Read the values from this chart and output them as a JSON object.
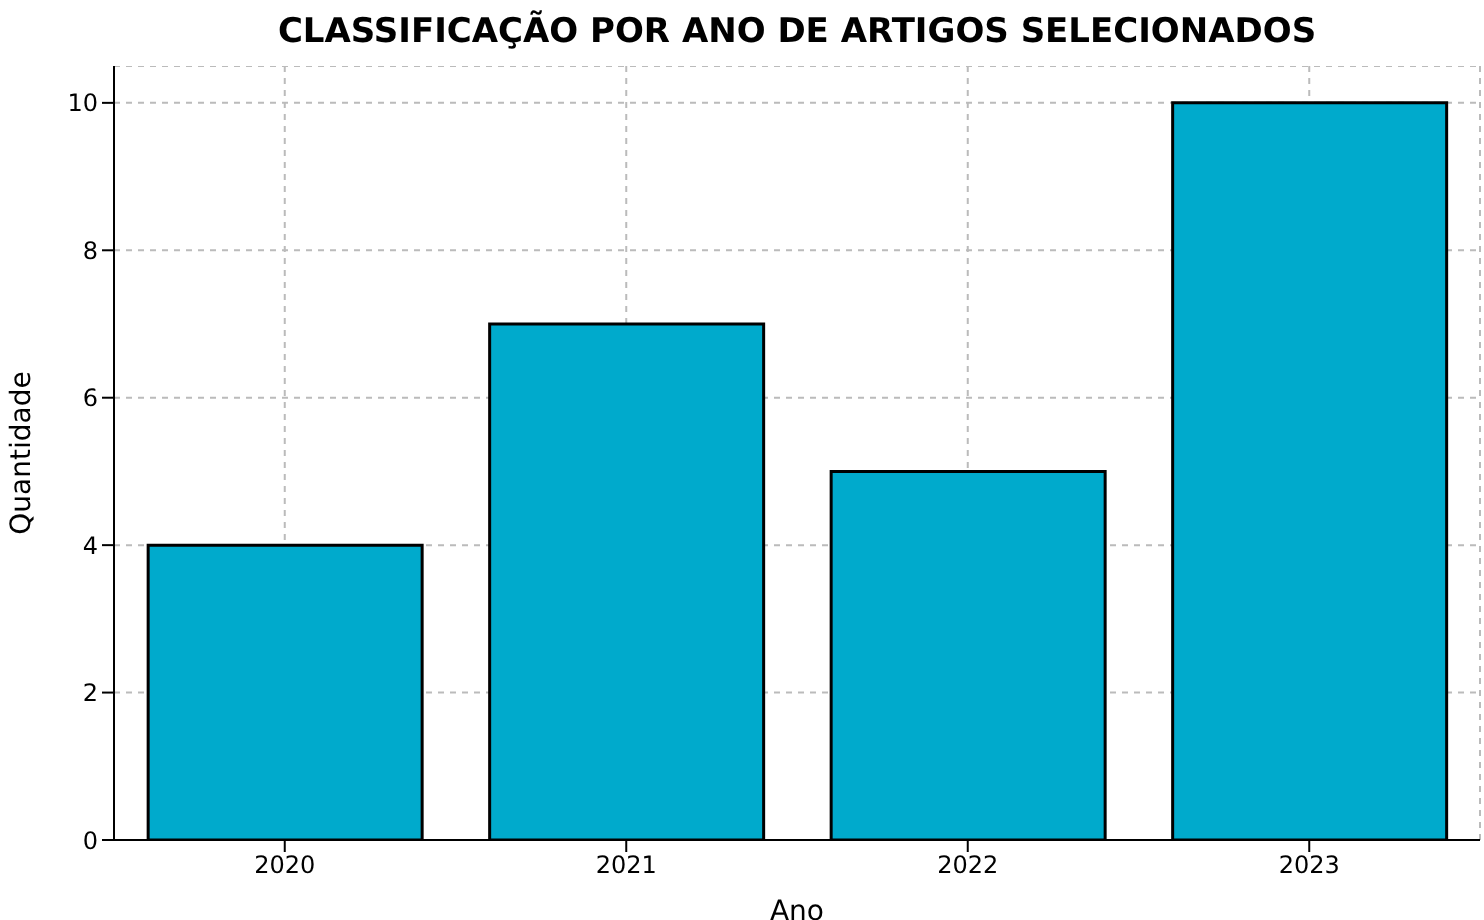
{
  "chart_data": {
    "type": "bar",
    "title": "CLASSIFICAÇÃO POR ANO DE ARTIGOS SELECIONADOS",
    "xlabel": "Ano",
    "ylabel": "Quantidade",
    "categories": [
      "2020",
      "2021",
      "2022",
      "2023"
    ],
    "values": [
      4,
      7,
      5,
      10
    ],
    "color": "#00aacc",
    "ylim": [
      0,
      10.5
    ],
    "yticks": [
      0,
      2,
      4,
      6,
      8,
      10
    ],
    "grid": true
  }
}
